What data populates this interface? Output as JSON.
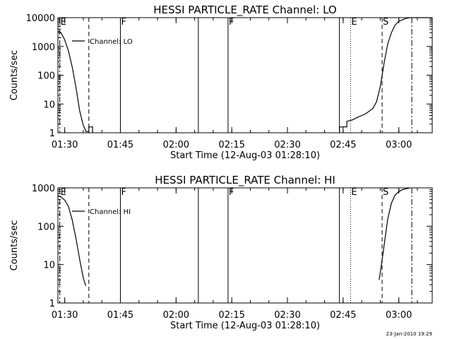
{
  "timestamp": "23-Jan-2010 19:29",
  "chart_data": [
    {
      "type": "line",
      "title": "HESSI PARTICLE_RATE Channel: LO",
      "xlabel": "Start Time (12-Aug-03 01:28:10)",
      "ylabel": "Counts/sec",
      "y_scale": "log",
      "xlim": [
        "01:28:10",
        "03:09:00"
      ],
      "ylim": [
        1,
        10000
      ],
      "x_ticks": [
        "01:30",
        "01:45",
        "02:00",
        "02:15",
        "02:30",
        "02:45",
        "03:00"
      ],
      "y_ticks": [
        "1",
        "10",
        "100",
        "1000",
        "10000"
      ],
      "grid": false,
      "legend": "top-left",
      "legend_label": "Channel: LO",
      "series": [
        {
          "name": "Channel: LO",
          "segments": [
            {
              "x": [
                "01:28:10",
                "01:29:00",
                "01:30:00",
                "01:31:00",
                "01:32:00",
                "01:33:00",
                "01:34:00",
                "01:35:00",
                "01:35:45",
                "01:36:30",
                "01:36:30",
                "01:37:30",
                "01:37:30"
              ],
              "y": [
                3500,
                3000,
                1700,
                700,
                200,
                40,
                6,
                1.8,
                1.1,
                1.1,
                1.6,
                1.6,
                1
              ]
            },
            {
              "x": [
                "02:44:00",
                "02:44:00",
                "02:46:00",
                "02:46:00",
                "02:47:30",
                "02:49:00",
                "02:51:00",
                "02:53:00",
                "02:54:00",
                "02:55:00",
                "02:56:00",
                "02:57:00",
                "02:58:00",
                "02:59:00",
                "03:00:00",
                "03:01:00",
                "03:02:00",
                "03:03:00",
                "03:05:00",
                "03:07:00",
                "03:09:00"
              ],
              "y": [
                1,
                1.6,
                1.6,
                2.5,
                2.8,
                3.5,
                4.5,
                7,
                12,
                40,
                250,
                1200,
                3000,
                5500,
                7500,
                8500,
                9500,
                10000,
                10000,
                10000,
                10000
              ]
            }
          ]
        }
      ],
      "markers": [
        {
          "time": "01:28:40",
          "label": "E",
          "style": "dashdot"
        },
        {
          "time": "01:36:30",
          "label": "",
          "style": "dashed"
        },
        {
          "time": "01:45:00",
          "label": "F",
          "style": "solid"
        },
        {
          "time": "02:06:00",
          "label": "",
          "style": "solid"
        },
        {
          "time": "02:14:00",
          "label": "F",
          "style": "solid"
        },
        {
          "time": "02:44:00",
          "label": "",
          "style": "solid"
        },
        {
          "time": "02:47:00",
          "label": "E",
          "style": "dotted"
        },
        {
          "time": "02:55:30",
          "label": "S",
          "style": "dashed"
        },
        {
          "time": "03:03:30",
          "label": "",
          "style": "dashdot"
        }
      ]
    },
    {
      "type": "line",
      "title": "HESSI PARTICLE_RATE Channel: HI",
      "xlabel": "Start Time (12-Aug-03 01:28:10)",
      "ylabel": "Counts/sec",
      "y_scale": "log",
      "xlim": [
        "01:28:10",
        "03:09:00"
      ],
      "ylim": [
        1,
        1000
      ],
      "x_ticks": [
        "01:30",
        "01:45",
        "02:00",
        "02:15",
        "02:30",
        "02:45",
        "03:00"
      ],
      "y_ticks": [
        "1",
        "10",
        "100",
        "1000"
      ],
      "grid": false,
      "legend": "top-left",
      "legend_label": "Channel: HI",
      "series": [
        {
          "name": "Channel: HI",
          "segments": [
            {
              "x": [
                "01:28:10",
                "01:29:00",
                "01:30:00",
                "01:31:00",
                "01:32:00",
                "01:33:00",
                "01:34:00",
                "01:35:00",
                "01:35:40"
              ],
              "y": [
                620,
                580,
                480,
                330,
                150,
                50,
                14,
                4.5,
                2.8
              ]
            },
            {
              "x": [
                "02:54:40",
                "02:55:00",
                "02:56:00",
                "02:57:00",
                "02:58:00",
                "02:59:00",
                "03:00:00",
                "03:01:00",
                "03:02:00",
                "03:03:00"
              ],
              "y": [
                4,
                6,
                30,
                150,
                400,
                650,
                800,
                900,
                950,
                1000
              ]
            }
          ]
        }
      ],
      "markers": [
        {
          "time": "01:28:40",
          "label": "E",
          "style": "dashdot"
        },
        {
          "time": "01:36:30",
          "label": "",
          "style": "dashed"
        },
        {
          "time": "01:45:00",
          "label": "F",
          "style": "solid"
        },
        {
          "time": "02:06:00",
          "label": "",
          "style": "solid"
        },
        {
          "time": "02:14:00",
          "label": "F",
          "style": "solid"
        },
        {
          "time": "02:44:00",
          "label": "",
          "style": "solid"
        },
        {
          "time": "02:47:00",
          "label": "E",
          "style": "dotted"
        },
        {
          "time": "02:55:30",
          "label": "S",
          "style": "dashed"
        },
        {
          "time": "03:03:30",
          "label": "",
          "style": "dashdot"
        }
      ]
    }
  ]
}
